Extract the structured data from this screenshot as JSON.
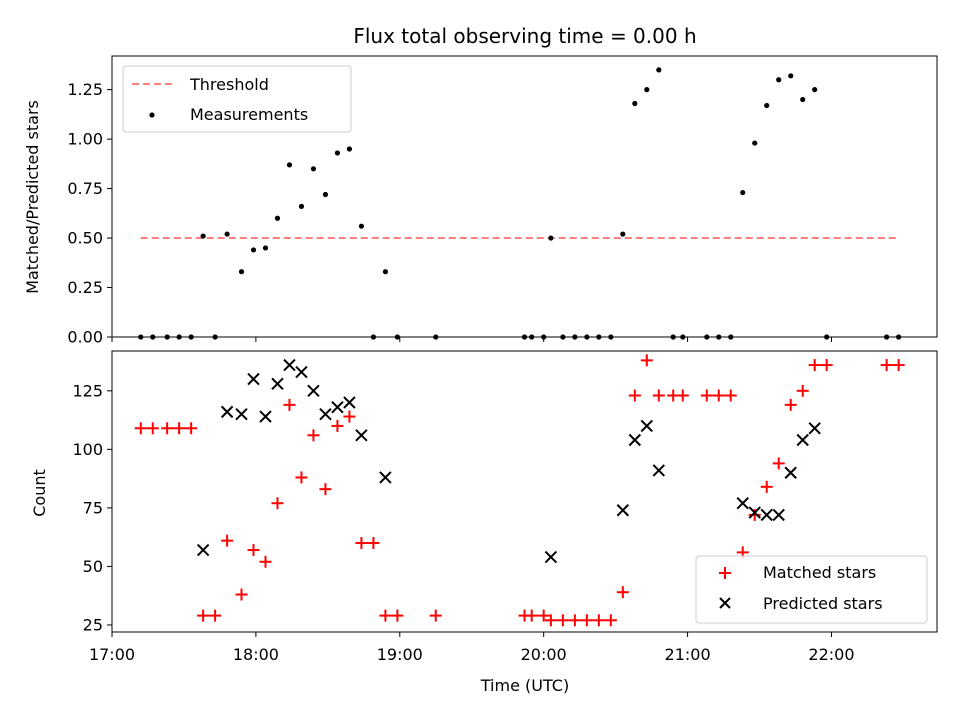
{
  "chart_data": [
    {
      "type": "scatter",
      "title": "Flux total observing time = 0.00 h",
      "xlabel": "",
      "ylabel": "Matched/Predicted stars",
      "xlim": [
        "17:00",
        "22:44"
      ],
      "ylim": [
        0,
        1.42
      ],
      "yticks": [
        "0.00",
        "0.25",
        "0.50",
        "0.75",
        "1.00",
        "1.25"
      ],
      "legend_position": "top-left",
      "series": [
        {
          "name": "Threshold",
          "kind": "dashed-line",
          "color": "#ff7f7f",
          "points": [
            [
              "17:12",
              0.5
            ],
            [
              "22:28",
              0.5
            ]
          ]
        },
        {
          "name": "Measurements",
          "kind": "dot",
          "color": "#000000",
          "points": [
            [
              "17:12",
              0.0
            ],
            [
              "17:17",
              0.0
            ],
            [
              "17:23",
              0.0
            ],
            [
              "17:28",
              0.0
            ],
            [
              "17:33",
              0.0
            ],
            [
              "17:38",
              0.51
            ],
            [
              "17:43",
              0.0
            ],
            [
              "17:48",
              0.52
            ],
            [
              "17:54",
              0.33
            ],
            [
              "17:59",
              0.44
            ],
            [
              "18:04",
              0.45
            ],
            [
              "18:09",
              0.6
            ],
            [
              "18:14",
              0.87
            ],
            [
              "18:19",
              0.66
            ],
            [
              "18:24",
              0.85
            ],
            [
              "18:29",
              0.72
            ],
            [
              "18:34",
              0.93
            ],
            [
              "18:39",
              0.95
            ],
            [
              "18:44",
              0.56
            ],
            [
              "18:49",
              0.0
            ],
            [
              "18:54",
              0.33
            ],
            [
              "18:59",
              0.0
            ],
            [
              "19:15",
              0.0
            ],
            [
              "19:52",
              0.0
            ],
            [
              "19:55",
              0.0
            ],
            [
              "20:00",
              0.0
            ],
            [
              "20:03",
              0.5
            ],
            [
              "20:08",
              0.0
            ],
            [
              "20:13",
              0.0
            ],
            [
              "20:18",
              0.0
            ],
            [
              "20:23",
              0.0
            ],
            [
              "20:28",
              0.0
            ],
            [
              "20:33",
              0.52
            ],
            [
              "20:38",
              1.18
            ],
            [
              "20:43",
              1.25
            ],
            [
              "20:48",
              1.35
            ],
            [
              "20:54",
              0.0
            ],
            [
              "20:58",
              0.0
            ],
            [
              "21:08",
              0.0
            ],
            [
              "21:13",
              0.0
            ],
            [
              "21:18",
              0.0
            ],
            [
              "21:23",
              0.73
            ],
            [
              "21:28",
              0.98
            ],
            [
              "21:33",
              1.17
            ],
            [
              "21:38",
              1.3
            ],
            [
              "21:43",
              1.32
            ],
            [
              "21:48",
              1.2
            ],
            [
              "21:53",
              1.25
            ],
            [
              "21:58",
              0.0
            ],
            [
              "22:23",
              0.0
            ],
            [
              "22:28",
              0.0
            ]
          ]
        }
      ]
    },
    {
      "type": "scatter",
      "title": "",
      "xlabel": "Time (UTC)",
      "ylabel": "Count",
      "xlim": [
        "17:00",
        "22:44"
      ],
      "ylim": [
        22,
        142
      ],
      "yticks": [
        "25",
        "50",
        "75",
        "100",
        "125"
      ],
      "xticks": [
        "17:00",
        "18:00",
        "19:00",
        "20:00",
        "21:00",
        "22:00"
      ],
      "legend_position": "bottom-right",
      "series": [
        {
          "name": "Matched stars",
          "kind": "plus",
          "color": "#ff0000",
          "points": [
            [
              "17:12",
              109
            ],
            [
              "17:17",
              109
            ],
            [
              "17:23",
              109
            ],
            [
              "17:28",
              109
            ],
            [
              "17:33",
              109
            ],
            [
              "17:38",
              29
            ],
            [
              "17:43",
              29
            ],
            [
              "17:48",
              61
            ],
            [
              "17:54",
              38
            ],
            [
              "17:59",
              57
            ],
            [
              "18:04",
              52
            ],
            [
              "18:09",
              77
            ],
            [
              "18:14",
              119
            ],
            [
              "18:19",
              88
            ],
            [
              "18:24",
              106
            ],
            [
              "18:29",
              83
            ],
            [
              "18:34",
              110
            ],
            [
              "18:39",
              114
            ],
            [
              "18:44",
              60
            ],
            [
              "18:49",
              60
            ],
            [
              "18:54",
              29
            ],
            [
              "18:59",
              29
            ],
            [
              "19:15",
              29
            ],
            [
              "19:52",
              29
            ],
            [
              "19:55",
              29
            ],
            [
              "20:00",
              29
            ],
            [
              "20:03",
              27
            ],
            [
              "20:08",
              27
            ],
            [
              "20:13",
              27
            ],
            [
              "20:18",
              27
            ],
            [
              "20:23",
              27
            ],
            [
              "20:28",
              27
            ],
            [
              "20:33",
              39
            ],
            [
              "20:38",
              123
            ],
            [
              "20:43",
              138
            ],
            [
              "20:48",
              123
            ],
            [
              "20:54",
              123
            ],
            [
              "20:58",
              123
            ],
            [
              "21:08",
              123
            ],
            [
              "21:13",
              123
            ],
            [
              "21:18",
              123
            ],
            [
              "21:23",
              56
            ],
            [
              "21:28",
              72
            ],
            [
              "21:33",
              84
            ],
            [
              "21:38",
              94
            ],
            [
              "21:43",
              119
            ],
            [
              "21:48",
              125
            ],
            [
              "21:53",
              136
            ],
            [
              "21:58",
              136
            ],
            [
              "22:23",
              136
            ],
            [
              "22:28",
              136
            ]
          ]
        },
        {
          "name": "Predicted stars",
          "kind": "cross",
          "color": "#000000",
          "points": [
            [
              "17:38",
              57
            ],
            [
              "17:48",
              116
            ],
            [
              "17:54",
              115
            ],
            [
              "17:59",
              130
            ],
            [
              "18:04",
              114
            ],
            [
              "18:09",
              128
            ],
            [
              "18:14",
              136
            ],
            [
              "18:19",
              133
            ],
            [
              "18:24",
              125
            ],
            [
              "18:29",
              115
            ],
            [
              "18:34",
              118
            ],
            [
              "18:39",
              120
            ],
            [
              "18:44",
              106
            ],
            [
              "18:54",
              88
            ],
            [
              "20:03",
              54
            ],
            [
              "20:33",
              74
            ],
            [
              "20:38",
              104
            ],
            [
              "20:43",
              110
            ],
            [
              "20:48",
              91
            ],
            [
              "21:23",
              77
            ],
            [
              "21:28",
              73
            ],
            [
              "21:33",
              72
            ],
            [
              "21:38",
              72
            ],
            [
              "21:43",
              90
            ],
            [
              "21:48",
              104
            ],
            [
              "21:53",
              109
            ]
          ]
        }
      ]
    }
  ]
}
